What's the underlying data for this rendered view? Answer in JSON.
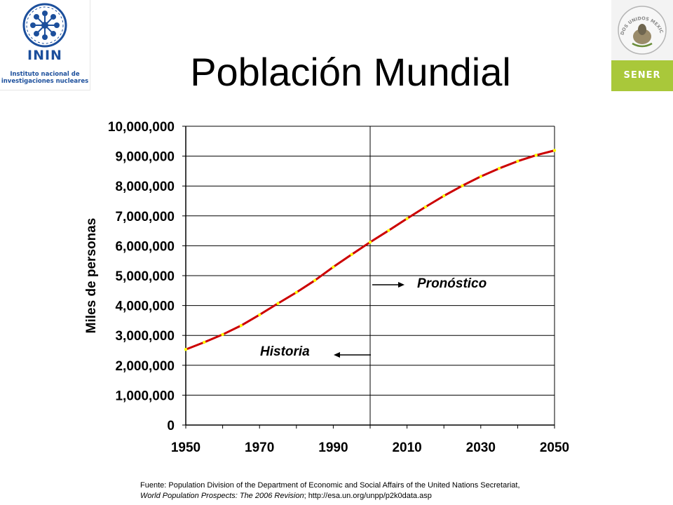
{
  "title": "Población Mundial",
  "logos": {
    "inin_name": "ININ",
    "inin_tagline_1": "Instituto nacional de",
    "inin_tagline_2": "investigaciones nucleares",
    "sener_name": "SENER",
    "seal_text": "ESTADOS UNIDOS MEXICANOS",
    "inin_color": "#1c4f9c",
    "sener_color": "#a9c83a"
  },
  "chart_data": {
    "type": "line",
    "title": "",
    "xlabel": "",
    "ylabel": "Miles de personas",
    "xlim": [
      1950,
      2050
    ],
    "ylim": [
      0,
      10000000
    ],
    "x_ticks": [
      1950,
      1970,
      1990,
      2010,
      2030,
      2050
    ],
    "x_tick_labels": [
      "1950",
      "1970",
      "1990",
      "2010",
      "2030",
      "2050"
    ],
    "y_ticks": [
      0,
      1000000,
      2000000,
      3000000,
      4000000,
      5000000,
      6000000,
      7000000,
      8000000,
      9000000,
      10000000
    ],
    "y_tick_labels": [
      "0",
      "1,000,000",
      "2,000,000",
      "3,000,000",
      "4,000,000",
      "5,000,000",
      "6,000,000",
      "7,000,000",
      "8,000,000",
      "9,000,000",
      "10,000,000"
    ],
    "grid": "horizontal",
    "divider_x": 2000,
    "series": [
      {
        "color": "#cc0000",
        "marker_color": "#ffff00",
        "x": [
          1950,
          1955,
          1960,
          1965,
          1970,
          1975,
          1980,
          1985,
          1990,
          1995,
          2000,
          2005,
          2010,
          2015,
          2020,
          2025,
          2030,
          2035,
          2040,
          2045,
          2050
        ],
        "y": [
          2530000,
          2770000,
          3030000,
          3330000,
          3690000,
          4070000,
          4440000,
          4840000,
          5290000,
          5710000,
          6120000,
          6510000,
          6910000,
          7300000,
          7670000,
          8010000,
          8320000,
          8590000,
          8830000,
          9030000,
          9190000
        ]
      }
    ],
    "annotations": [
      {
        "text": "Historia",
        "arrow": "left"
      },
      {
        "text": "Pronóstico",
        "arrow": "right"
      }
    ]
  },
  "source": {
    "line1": "Fuente: Population Division of the Department of Economic and Social Affairs of the United Nations Secretariat,",
    "line2_italic": "World Population Prospects: The 2006 Revision",
    "line2_rest": "; http://esa.un.org/unpp/p2k0data.asp"
  }
}
